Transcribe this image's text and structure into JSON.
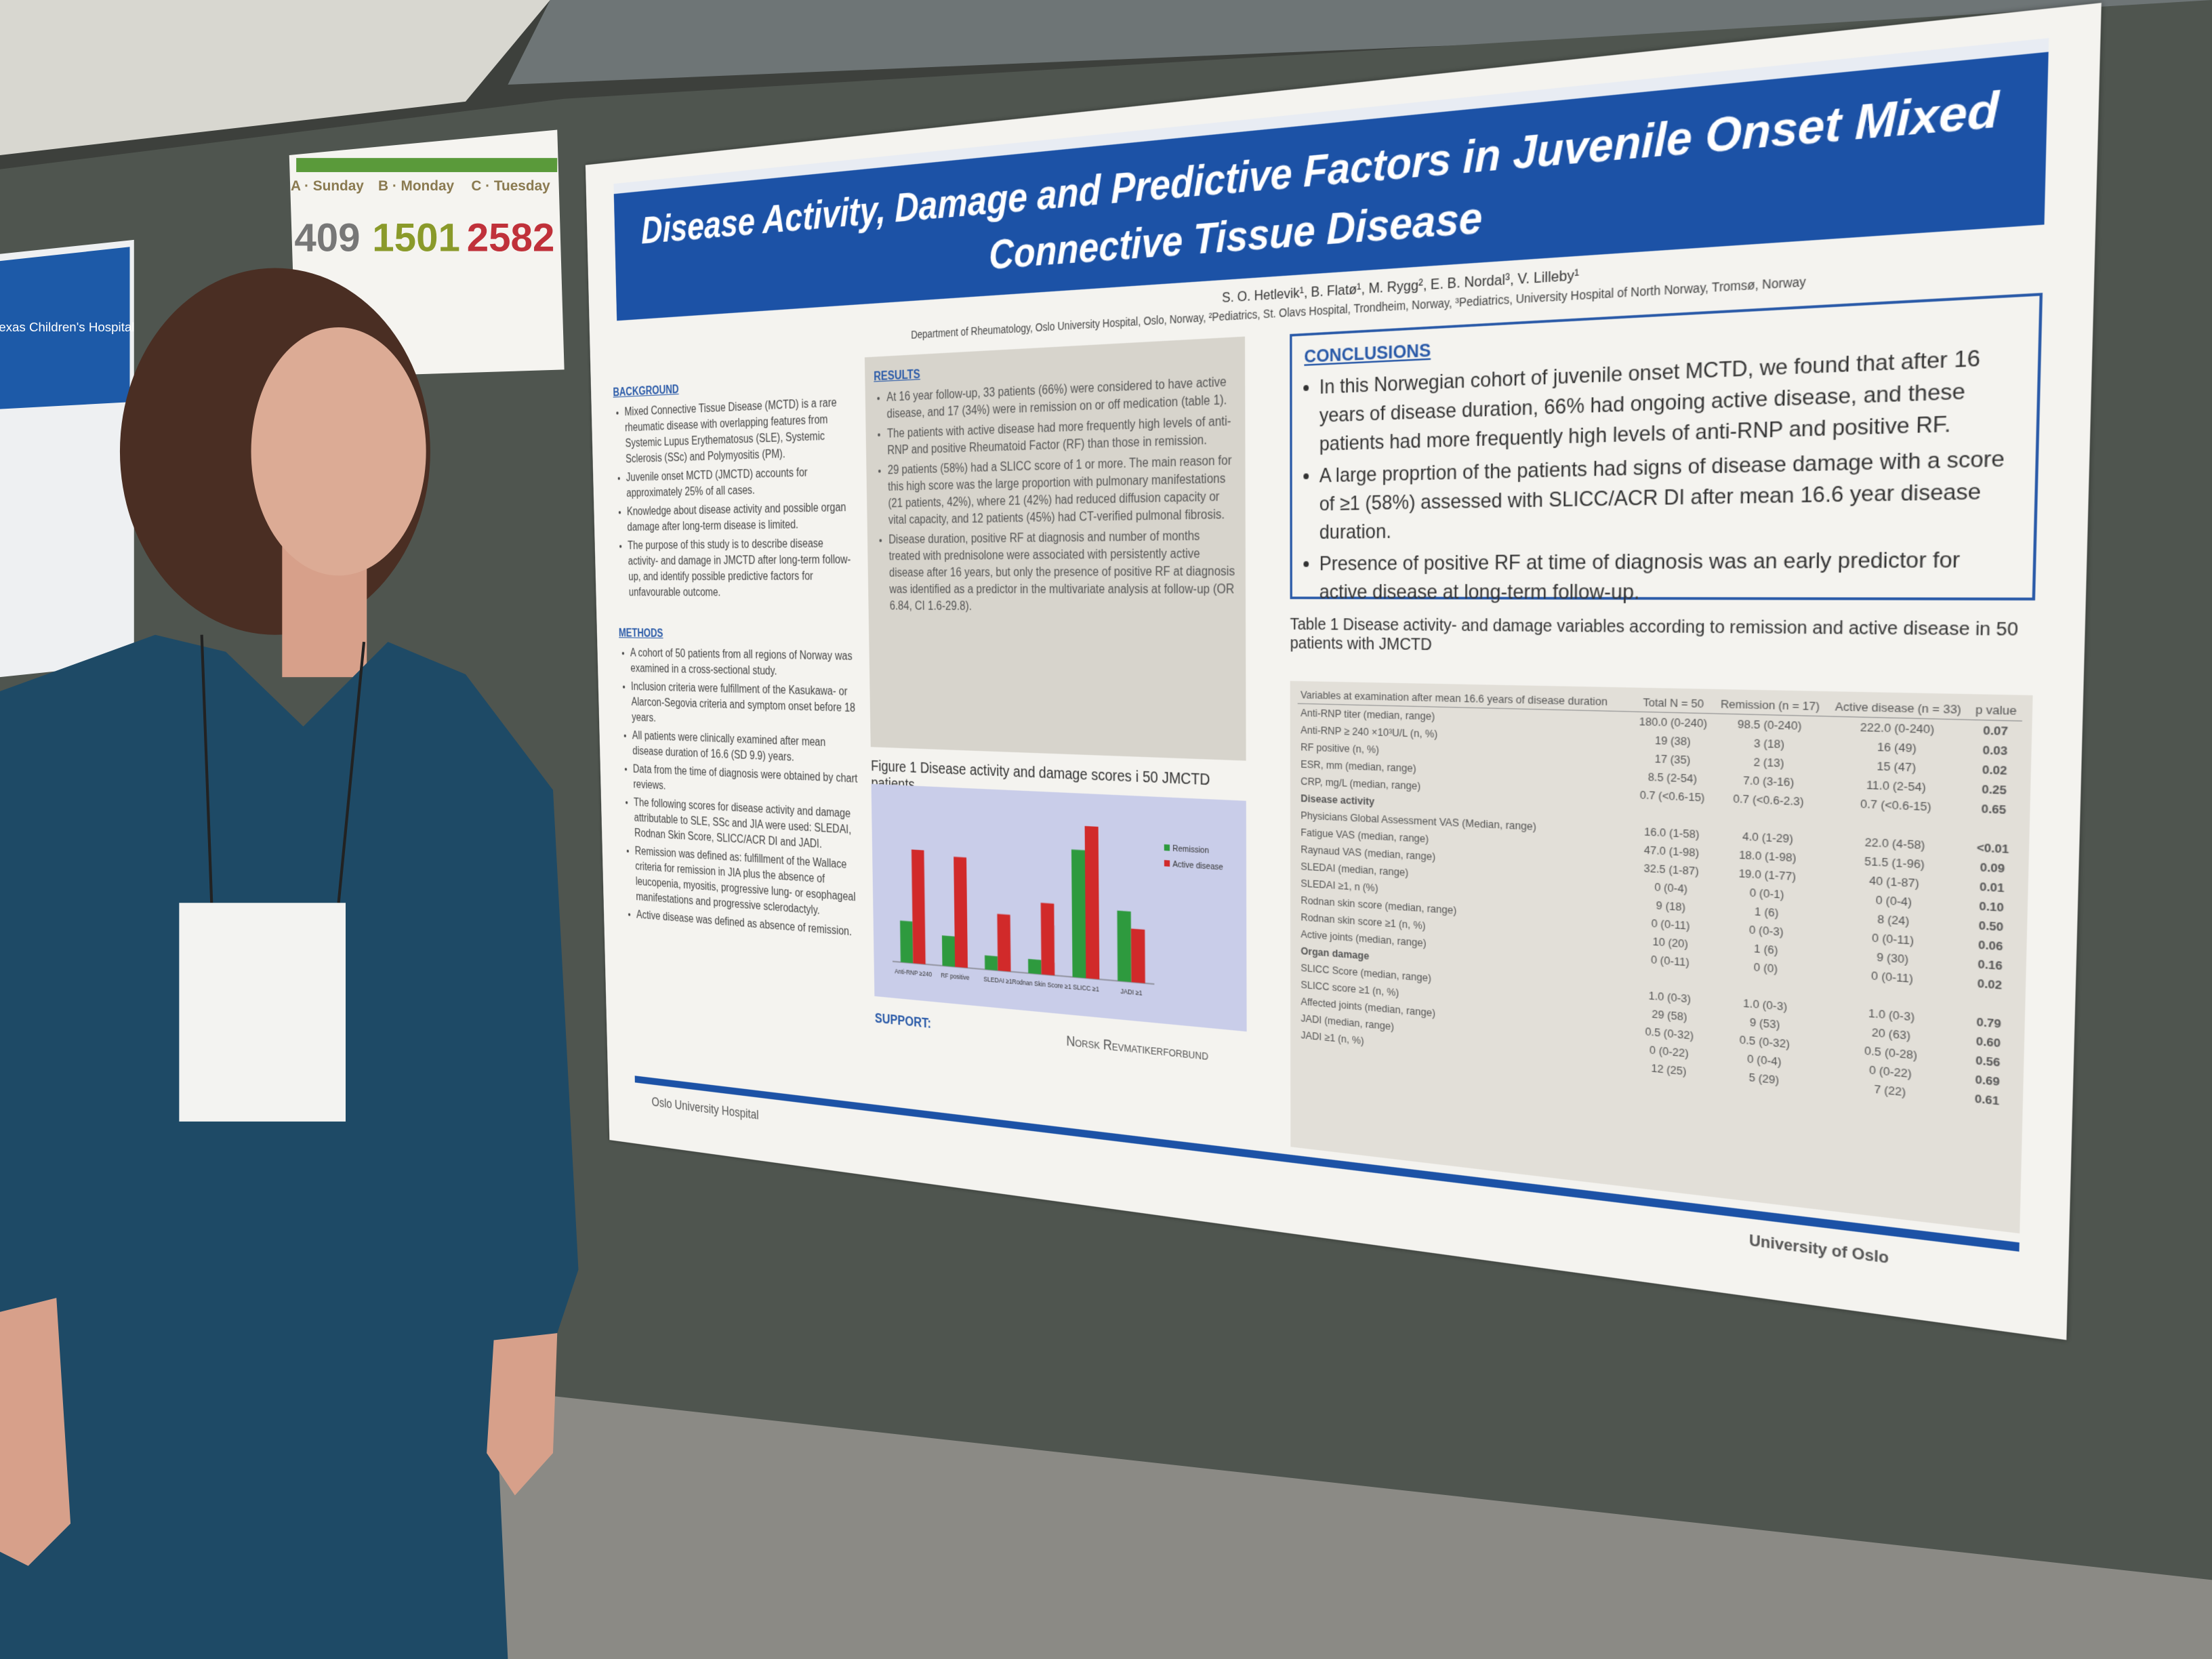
{
  "sign": {
    "days": [
      "A · Sunday",
      "B · Monday",
      "C · Tuesday"
    ],
    "numbers": [
      "409",
      "1501",
      "2582"
    ]
  },
  "left_poster": {
    "logo": "Texas Children's Hospital"
  },
  "poster": {
    "title": [
      "Disease Activity, Damage and Predictive Factors in Juvenile Onset Mixed",
      "Connective Tissue Disease"
    ],
    "authors": "S. O. Hetlevik¹, B. Flatø¹, M. Rygg², E. B. Nordal³, V. Lilleby¹",
    "affiliation": "Department of Rheumatology, Oslo University Hospital, Oslo, Norway, ²Pediatrics, St. Olavs Hospital, Trondheim, Norway, ³Pediatrics, University Hospital of North Norway, Tromsø, Norway",
    "background": {
      "heading": "BACKGROUND",
      "items": [
        "Mixed Connective Tissue Disease (MCTD) is a rare rheumatic disease with overlapping features from Systemic Lupus Erythematosus (SLE), Systemic Sclerosis (SSc) and Polymyositis (PM).",
        "Juvenile onset MCTD (JMCTD) accounts for approximately 25% of all cases.",
        "Knowledge about disease activity and possible organ damage after long-term disease is limited.",
        "The purpose of this study is to describe disease activity- and damage in JMCTD after long-term follow-up, and identify possible predictive factors for unfavourable outcome."
      ]
    },
    "methods": {
      "heading": "METHODS",
      "items": [
        "A cohort of 50 patients from all regions of Norway was examined in a cross-sectional study.",
        "Inclusion criteria were fulfillment of the Kasukawa- or Alarcon-Segovia criteria and symptom onset before 18 years.",
        "All patients were clinically examined after mean disease duration of 16.6 (SD 9.9) years.",
        "Data from the time of diagnosis were obtained by chart reviews.",
        "The following scores for disease activity and damage attributable to SLE, SSc and JIA were used: SLEDAI, Rodnan Skin Score, SLICC/ACR DI and JADI.",
        "Remission was defined as: fulfillment of the Wallace criteria for remission in JIA plus the absence of leucopenia, myositis, progressive lung- or esophageal manifestations and progressive sclerodactyly.",
        "Active disease was defined as absence of remission."
      ]
    },
    "results": {
      "heading": "RESULTS",
      "items": [
        "At 16 year follow-up, 33 patients (66%) were considered to have active disease, and 17 (34%) were in remission on or off medication (table 1).",
        "The patients with active disease had more frequently high levels of anti-RNP and positive Rheumatoid Factor (RF) than those in remission.",
        "29 patients (58%) had a SLICC score of 1 or more. The main reason for this high score was the large proportion with pulmonary manifestations (21 patients, 42%), where 21 (42%) had reduced diffusion capacity or vital capacity, and 12 patients (45%) had CT-verified pulmonal fibrosis.",
        "Disease duration, positive RF at diagnosis and number of months treated with prednisolone were associated with persistently active disease after 16 years, but only the presence of positive RF at diagnosis was identified as a predictor in the multivariate analysis at follow-up (OR 6.84, CI 1.6-29.8)."
      ]
    },
    "figure_caption": "Figure 1 Disease activity and damage scores i 50 JMCTD patients",
    "conclusions": {
      "heading": "CONCLUSIONS",
      "items": [
        "In this Norwegian cohort of juvenile onset MCTD, we found that after 16 years of disease duration, 66% had ongoing active disease, and these patients had more frequently high levels of anti-RNP and positive RF.",
        "A large proprtion of the patients had signs of disease damage with a score of ≥1 (58%) assessed with SLICC/ACR DI after mean 16.6 year disease duration.",
        "Presence of positive RF at time of diagnosis was an early predictor for active disease at long-term follow-up."
      ]
    },
    "table": {
      "caption": "Table 1 Disease activity- and damage variables according to remission and active disease in 50 patients with JMCTD",
      "header": [
        "Variables at examination after mean 16.6 years of disease duration",
        "Total N = 50",
        "Remission (n = 17)",
        "Active disease (n = 33)",
        "p value"
      ],
      "rows": [
        [
          "Anti-RNP titer (median, range)",
          "180.0 (0-240)",
          "98.5 (0-240)",
          "222.0 (0-240)",
          "0.07"
        ],
        [
          "Anti-RNP ≥ 240 ×10³U/L (n, %)",
          "19 (38)",
          "3 (18)",
          "16 (49)",
          "0.03"
        ],
        [
          "RF positive (n, %)",
          "17 (35)",
          "2 (13)",
          "15 (47)",
          "0.02"
        ],
        [
          "ESR, mm (median, range)",
          "8.5 (2-54)",
          "7.0 (3-16)",
          "11.0 (2-54)",
          "0.25"
        ],
        [
          "CRP, mg/L (median, range)",
          "0.7 (<0.6-15)",
          "0.7 (<0.6-2.3)",
          "0.7 (<0.6-15)",
          "0.65"
        ],
        [
          "Disease activity"
        ],
        [
          "Physicians Global Assessment VAS (Median, range)",
          "16.0 (1-58)",
          "4.0 (1-29)",
          "22.0 (4-58)",
          "<0.01"
        ],
        [
          "Fatigue VAS (median, range)",
          "47.0 (1-98)",
          "18.0 (1-98)",
          "51.5 (1-96)",
          "0.09"
        ],
        [
          "Raynaud VAS (median, range)",
          "32.5 (1-87)",
          "19.0 (1-77)",
          "40 (1-87)",
          "0.01"
        ],
        [
          "SLEDAI (median, range)",
          "0 (0-4)",
          "0 (0-1)",
          "0 (0-4)",
          "0.10"
        ],
        [
          "SLEDAI ≥1, n (%)",
          "9 (18)",
          "1 (6)",
          "8 (24)",
          "0.50"
        ],
        [
          "Rodnan skin score (median, range)",
          "0 (0-11)",
          "0 (0-3)",
          "0 (0-11)",
          "0.06"
        ],
        [
          "Rodnan skin score ≥1 (n, %)",
          "10 (20)",
          "1 (6)",
          "9 (30)",
          "0.16"
        ],
        [
          "Active joints (median, range)",
          "0 (0-11)",
          "0 (0)",
          "0 (0-11)",
          "0.02"
        ],
        [
          "Organ damage"
        ],
        [
          "SLICC Score (median, range)",
          "1.0 (0-3)",
          "1.0 (0-3)",
          "1.0 (0-3)",
          "0.79"
        ],
        [
          "SLICC score ≥1 (n, %)",
          "29 (58)",
          "9 (53)",
          "20 (63)",
          "0.60"
        ],
        [
          "Affected joints (median, range)",
          "0.5 (0-32)",
          "0.5 (0-32)",
          "0.5 (0-28)",
          "0.56"
        ],
        [
          "JADI (median, range)",
          "0 (0-22)",
          "0 (0-4)",
          "0 (0-22)",
          "0.69"
        ],
        [
          "JADI ≥1 (n, %)",
          "12 (25)",
          "5 (29)",
          "7 (22)",
          "0.61"
        ]
      ]
    },
    "support": "SUPPORT:",
    "sponsor": "Norsk Revmatikerforbund",
    "footer_left": "Oslo University Hospital",
    "footer_right": "University of Oslo"
  },
  "chart_data": {
    "type": "bar",
    "categories": [
      "Anti-RNP ≥240",
      "RF positive",
      "SLEDAI ≥1",
      "Rodnan Skin Score ≥1",
      "SLICC ≥1",
      "JADI ≥1"
    ],
    "series": [
      {
        "name": "Remission",
        "color": "#2e9a3e",
        "values": [
          18,
          13,
          6,
          6,
          53,
          29
        ]
      },
      {
        "name": "Active disease",
        "color": "#d12a2a",
        "values": [
          49,
          47,
          24,
          30,
          63,
          22
        ]
      }
    ],
    "ylim": [
      0,
      70
    ],
    "legend": "right"
  }
}
